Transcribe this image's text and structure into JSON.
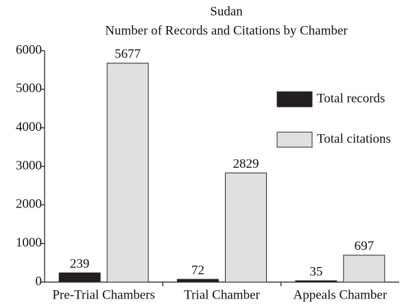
{
  "chart_data": {
    "type": "bar",
    "title": "Sudan",
    "subtitle": "Number of Records and Citations by Chamber",
    "categories": [
      "Pre-Trial Chambers",
      "Trial Chamber",
      "Appeals Chamber"
    ],
    "series": [
      {
        "name": "Total records",
        "color": "#231f20",
        "values": [
          239,
          72,
          35
        ]
      },
      {
        "name": "Total citations",
        "color": "#e0e0e0",
        "values": [
          5677,
          2829,
          697
        ]
      }
    ],
    "ylim": [
      0,
      6000
    ],
    "yticks": [
      0,
      1000,
      2000,
      3000,
      4000,
      5000,
      6000
    ],
    "legend": "upper right"
  }
}
